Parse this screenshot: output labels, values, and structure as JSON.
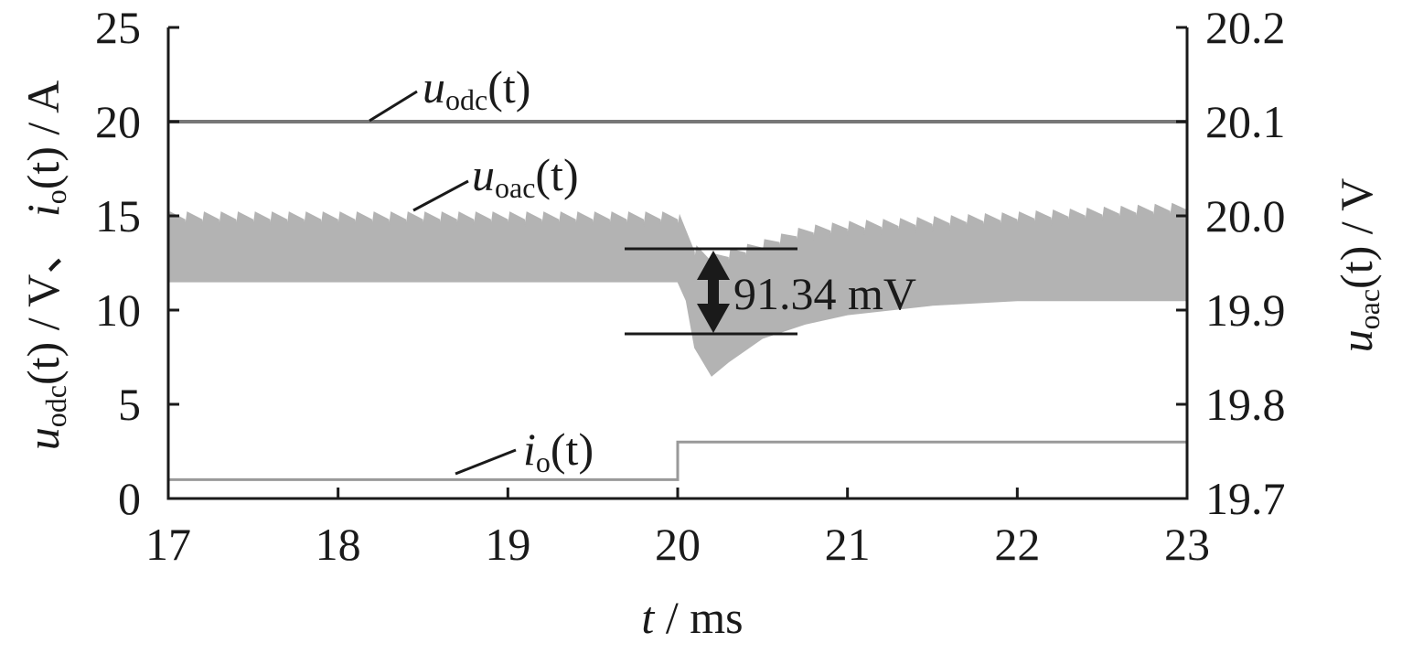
{
  "chart_data": {
    "type": "line",
    "x_axis": {
      "label_var": "t",
      "label_unit": " / ms",
      "lim": [
        17,
        23
      ],
      "ticks": [
        "17",
        "18",
        "19",
        "20",
        "21",
        "22",
        "23"
      ]
    },
    "y_left": {
      "label": {
        "v1": "u",
        "v1_sub": "odc",
        "v1_arg": "(t)",
        "mid": " / V、 ",
        "v2": "i",
        "v2_sub": "o",
        "v2_arg": "(t)",
        "unit": " / A"
      },
      "lim": [
        0,
        25
      ],
      "ticks": [
        "0",
        "5",
        "10",
        "15",
        "20",
        "25"
      ]
    },
    "y_right": {
      "label": {
        "v": "u",
        "v_sub": "oac",
        "v_arg": "(t)",
        "unit": " / V"
      },
      "lim": [
        19.7,
        20.2
      ],
      "ticks": [
        "19.7",
        "19.8",
        "19.9",
        "20.0",
        "20.1",
        "20.2"
      ]
    },
    "series": [
      {
        "name": {
          "v": "u",
          "sub": "odc",
          "arg": "(t)"
        },
        "axis": "left",
        "color": "#777777",
        "x": [
          17,
          23
        ],
        "y": [
          20,
          20
        ]
      },
      {
        "name": {
          "v": "u",
          "sub": "oac",
          "arg": "(t)"
        },
        "axis": "right",
        "color": "#b3b3b3",
        "ripple_envelope": {
          "x": [
            17,
            19.9,
            20.0,
            20.05,
            20.1,
            20.2,
            20.3,
            20.5,
            20.75,
            21.0,
            21.5,
            22.0,
            22.5,
            23.0
          ],
          "upper": [
            20.0,
            20.0,
            20.0,
            19.985,
            19.965,
            19.955,
            19.96,
            19.97,
            19.985,
            19.99,
            19.995,
            20.0,
            20.005,
            20.01
          ],
          "lower": [
            19.93,
            19.93,
            19.93,
            19.91,
            19.86,
            19.83,
            19.845,
            19.87,
            19.885,
            19.895,
            19.905,
            19.91,
            19.91,
            19.91
          ]
        }
      },
      {
        "name": {
          "v": "i",
          "sub": "o",
          "arg": "(t)"
        },
        "axis": "left",
        "color": "#999999",
        "x": [
          17,
          20,
          20,
          23
        ],
        "y": [
          1,
          1,
          3,
          3
        ]
      }
    ],
    "annotations": [
      {
        "text": "91.34 mV",
        "type": "dimension-arrow",
        "x": 20.25,
        "y_top": 19.975,
        "y_bottom": 19.884
      }
    ]
  }
}
